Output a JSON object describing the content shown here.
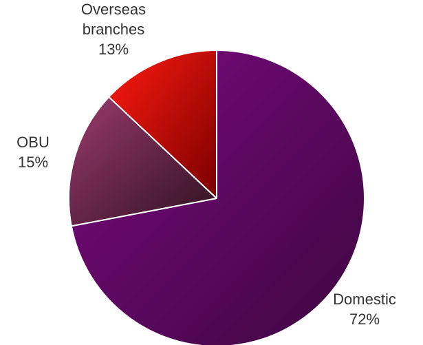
{
  "chart_data": {
    "type": "pie",
    "categories": [
      "Domestic",
      "OBU",
      "Overseas branches"
    ],
    "values": [
      72,
      15,
      13
    ],
    "value_labels": [
      "72%",
      "15%",
      "13%"
    ],
    "label_lines": [
      [
        "Domestic"
      ],
      [
        "OBU"
      ],
      [
        "Overseas",
        "branches"
      ]
    ],
    "start": "12 o'clock, clockwise",
    "colors": [
      {
        "light": "#7b0a80",
        "dark": "#3d0640"
      },
      {
        "light": "#9a3a6e",
        "dark": "#2e1220"
      },
      {
        "light": "#ff1a10",
        "dark": "#7a0000"
      }
    ],
    "legend": "none",
    "title": ""
  }
}
